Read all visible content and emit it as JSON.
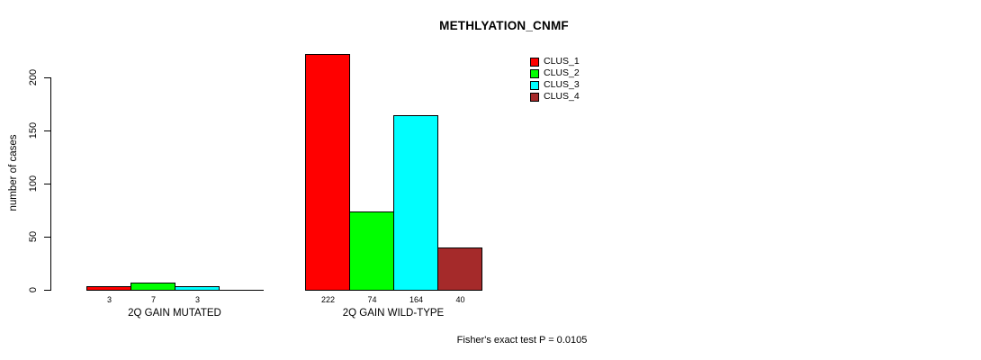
{
  "title": "METHLYATION_CNMF",
  "y_axis": {
    "label": "number of cases",
    "ticks": [
      "0",
      "50",
      "100",
      "150",
      "200"
    ]
  },
  "legend": {
    "items": [
      {
        "label": "CLUS_1",
        "color": "#FF0000"
      },
      {
        "label": "CLUS_2",
        "color": "#00FF00"
      },
      {
        "label": "CLUS_3",
        "color": "#00FFFF"
      },
      {
        "label": "CLUS_4",
        "color": "#A52A2A"
      }
    ]
  },
  "footer": "Fisher's exact test P = 0.0105",
  "chart_data": {
    "type": "bar",
    "title": "METHLYATION_CNMF",
    "xlabel": "",
    "ylabel": "number of cases",
    "ylim": [
      0,
      222
    ],
    "yticks": [
      0,
      50,
      100,
      150,
      200
    ],
    "grid": false,
    "legend_position": "top-right",
    "series_names": [
      "CLUS_1",
      "CLUS_2",
      "CLUS_3",
      "CLUS_4"
    ],
    "colors": [
      "#FF0000",
      "#00FF00",
      "#00FFFF",
      "#A52A2A"
    ],
    "groups": [
      {
        "label": "2Q GAIN MUTATED",
        "values": [
          3,
          7,
          3,
          0
        ],
        "bar_labels": [
          "3",
          "7",
          "3",
          ""
        ]
      },
      {
        "label": "2Q GAIN WILD-TYPE",
        "values": [
          222,
          74,
          164,
          40
        ],
        "bar_labels": [
          "222",
          "74",
          "164",
          "40"
        ]
      }
    ],
    "annotation": "Fisher's exact test P = 0.0105"
  }
}
